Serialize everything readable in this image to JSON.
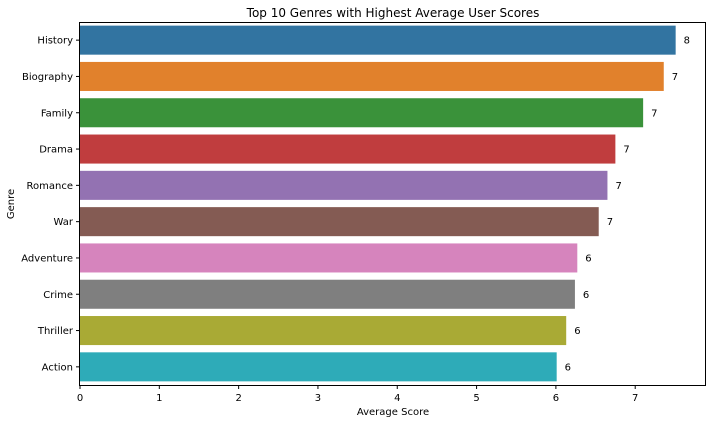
{
  "chart_data": {
    "type": "bar",
    "orientation": "horizontal",
    "title": "Top 10 Genres with Highest Average User Scores",
    "xlabel": "Average Score",
    "ylabel": "Genre",
    "xlim": [
      0,
      7.88
    ],
    "xticks": [
      0,
      1,
      2,
      3,
      4,
      5,
      6,
      7
    ],
    "grid": false,
    "categories": [
      "History",
      "Biography",
      "Family",
      "Drama",
      "Romance",
      "War",
      "Adventure",
      "Crime",
      "Thriller",
      "Action"
    ],
    "values": [
      7.51,
      7.36,
      7.1,
      6.75,
      6.65,
      6.54,
      6.27,
      6.24,
      6.13,
      6.01
    ],
    "data_labels": [
      "8",
      "7",
      "7",
      "7",
      "7",
      "7",
      "6",
      "6",
      "6",
      "6"
    ],
    "colors": [
      "#3274a1",
      "#e1812c",
      "#3a923a",
      "#c03d3e",
      "#9372b2",
      "#845b53",
      "#d684bd",
      "#7f7f7f",
      "#a9aa35",
      "#2eabb8"
    ]
  }
}
